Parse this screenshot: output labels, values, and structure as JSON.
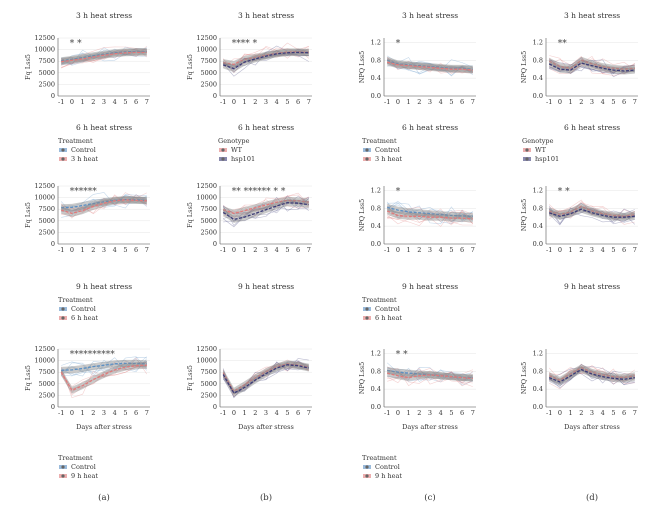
{
  "colors": {
    "control": "#5a8fc4",
    "treated": "#e07a7a",
    "wt": "#e07a7a",
    "hsp101": "#3c3c78",
    "band": "#8a8a8a",
    "grid": "#e6e6e6"
  },
  "x_ticks": [
    "-1",
    "0",
    "1",
    "2",
    "3",
    "4",
    "5",
    "6",
    "7"
  ],
  "x_axis_label": "Days after stress",
  "panel_letters": [
    "(a)",
    "(b)",
    "(c)",
    "(d)"
  ],
  "legends": [
    {
      "id": "treat-3h",
      "title": "Treatment",
      "items": [
        "Control",
        "3 h heat"
      ],
      "colors": [
        "#5a8fc4",
        "#e07a7a"
      ]
    },
    {
      "id": "geno-1",
      "title": "Genotype",
      "items": [
        "WT",
        "hsp101"
      ],
      "colors": [
        "#e07a7a",
        "#3c3c78"
      ]
    },
    {
      "id": "treat-3h-c",
      "title": "Treatment",
      "items": [
        "Control",
        "3 h heat"
      ],
      "colors": [
        "#5a8fc4",
        "#e07a7a"
      ]
    },
    {
      "id": "geno-2",
      "title": "Genotype",
      "items": [
        "WT",
        "hsp101"
      ],
      "colors": [
        "#e07a7a",
        "#3c3c78"
      ]
    },
    {
      "id": "treat-6h",
      "title": "Treatment",
      "items": [
        "Control",
        "6 h heat"
      ],
      "colors": [
        "#5a8fc4",
        "#e07a7a"
      ]
    },
    {
      "id": "treat-6h-c",
      "title": "Treatment",
      "items": [
        "Control",
        "6 h heat"
      ],
      "colors": [
        "#5a8fc4",
        "#e07a7a"
      ]
    },
    {
      "id": "treat-9h",
      "title": "Treatment",
      "items": [
        "Control",
        "9 h heat"
      ],
      "colors": [
        "#5a8fc4",
        "#e07a7a"
      ]
    },
    {
      "id": "treat-9h-c",
      "title": "Treatment",
      "items": [
        "Control",
        "9 h heat"
      ],
      "colors": [
        "#5a8fc4",
        "#e07a7a"
      ]
    }
  ],
  "chart_data": [
    {
      "type": "line",
      "id": "a1",
      "title": "3 h heat stress",
      "ylabel": "Fq Lss5",
      "yticks": [
        "0",
        "2500",
        "5000",
        "7500",
        "10000",
        "12500"
      ],
      "ylim": [
        0,
        12500
      ],
      "stars": "*   *",
      "x": [
        -1,
        0,
        1,
        2,
        3,
        4,
        5,
        6,
        7
      ],
      "series": [
        {
          "values": [
            7600,
            7900,
            8300,
            8700,
            9000,
            9300,
            9500,
            9600,
            9600
          ],
          "color": "control"
        },
        {
          "values": [
            7400,
            7700,
            8000,
            8400,
            8800,
            9100,
            9300,
            9400,
            9400
          ],
          "color": "treated"
        }
      ]
    },
    {
      "type": "line",
      "id": "b1",
      "title": "3 h heat stress",
      "ylabel": "Fq Lss5",
      "yticks": [
        "0",
        "2500",
        "5000",
        "7500",
        "10000",
        "12500"
      ],
      "ylim": [
        0,
        12500
      ],
      "stars": "**** *",
      "x": [
        -1,
        0,
        1,
        2,
        3,
        4,
        5,
        6,
        7
      ],
      "series": [
        {
          "values": [
            7200,
            6800,
            7900,
            8300,
            8800,
            9200,
            9500,
            9500,
            9400
          ],
          "color": "wt"
        },
        {
          "values": [
            6700,
            5900,
            7300,
            8000,
            8600,
            9100,
            9300,
            9400,
            9300
          ],
          "color": "hsp101"
        }
      ]
    },
    {
      "type": "line",
      "id": "c1",
      "title": "3 h heat stress",
      "ylabel": "NPQ Lss5",
      "yticks": [
        "0.0",
        "0.4",
        "0.8",
        "1.2"
      ],
      "ylim": [
        0,
        1.3
      ],
      "stars": "*",
      "x": [
        -1,
        0,
        1,
        2,
        3,
        4,
        5,
        6,
        7
      ],
      "series": [
        {
          "values": [
            0.8,
            0.72,
            0.7,
            0.68,
            0.66,
            0.64,
            0.62,
            0.62,
            0.6
          ],
          "color": "control"
        },
        {
          "values": [
            0.76,
            0.7,
            0.68,
            0.66,
            0.64,
            0.62,
            0.6,
            0.6,
            0.58
          ],
          "color": "treated"
        }
      ]
    },
    {
      "type": "line",
      "id": "d1",
      "title": "3 h heat stress",
      "ylabel": "NPQ Lss5",
      "yticks": [
        "0.0",
        "0.4",
        "0.8",
        "1.2"
      ],
      "ylim": [
        0,
        1.3
      ],
      "stars": "**",
      "x": [
        -1,
        0,
        1,
        2,
        3,
        4,
        5,
        6,
        7
      ],
      "series": [
        {
          "values": [
            0.78,
            0.66,
            0.62,
            0.8,
            0.72,
            0.66,
            0.62,
            0.6,
            0.62
          ],
          "color": "wt"
        },
        {
          "values": [
            0.72,
            0.6,
            0.58,
            0.74,
            0.68,
            0.62,
            0.58,
            0.56,
            0.58
          ],
          "color": "hsp101"
        }
      ]
    },
    {
      "type": "line",
      "id": "a2",
      "title": "6 h heat stress",
      "ylabel": "Fq Lss5",
      "yticks": [
        "0",
        "2500",
        "5000",
        "7500",
        "10000",
        "12500"
      ],
      "ylim": [
        0,
        12500
      ],
      "stars": "******",
      "x": [
        -1,
        0,
        1,
        2,
        3,
        4,
        5,
        6,
        7
      ],
      "series": [
        {
          "values": [
            7800,
            7900,
            8300,
            8700,
            9100,
            9400,
            9600,
            9500,
            9400
          ],
          "color": "control"
        },
        {
          "values": [
            7300,
            6600,
            7200,
            8100,
            8800,
            9300,
            9500,
            9400,
            9300
          ],
          "color": "treated"
        }
      ]
    },
    {
      "type": "line",
      "id": "b2",
      "title": "6 h heat stress",
      "ylabel": "Fq Lss5",
      "yticks": [
        "0",
        "2500",
        "5000",
        "7500",
        "10000",
        "12500"
      ],
      "ylim": [
        0,
        12500
      ],
      "stars": "** ****** *        *",
      "x": [
        -1,
        0,
        1,
        2,
        3,
        4,
        5,
        6,
        7
      ],
      "series": [
        {
          "values": [
            7400,
            6600,
            7200,
            7800,
            8400,
            9000,
            9400,
            9300,
            9000
          ],
          "color": "wt"
        },
        {
          "values": [
            6800,
            5300,
            5800,
            6600,
            7400,
            8200,
            8900,
            8800,
            8500
          ],
          "color": "hsp101"
        }
      ]
    },
    {
      "type": "line",
      "id": "c2",
      "title": "6 h heat stress",
      "ylabel": "NPQ Lss5",
      "yticks": [
        "0.0",
        "0.4",
        "0.8",
        "1.2"
      ],
      "ylim": [
        0,
        1.3
      ],
      "stars": "*",
      "x": [
        -1,
        0,
        1,
        2,
        3,
        4,
        5,
        6,
        7
      ],
      "series": [
        {
          "values": [
            0.82,
            0.76,
            0.72,
            0.7,
            0.68,
            0.66,
            0.64,
            0.63,
            0.62
          ],
          "color": "control"
        },
        {
          "values": [
            0.74,
            0.64,
            0.62,
            0.62,
            0.6,
            0.6,
            0.58,
            0.58,
            0.56
          ],
          "color": "treated"
        }
      ]
    },
    {
      "type": "line",
      "id": "d2",
      "title": "6 h heat stress",
      "ylabel": "NPQ Lss5",
      "yticks": [
        "0.0",
        "0.4",
        "0.8",
        "1.2"
      ],
      "ylim": [
        0,
        1.3
      ],
      "stars": "*   *",
      "x": [
        -1,
        0,
        1,
        2,
        3,
        4,
        5,
        6,
        7
      ],
      "series": [
        {
          "values": [
            0.74,
            0.66,
            0.72,
            0.84,
            0.74,
            0.68,
            0.64,
            0.62,
            0.66
          ],
          "color": "wt"
        },
        {
          "values": [
            0.7,
            0.62,
            0.68,
            0.78,
            0.7,
            0.64,
            0.6,
            0.6,
            0.62
          ],
          "color": "hsp101"
        }
      ]
    },
    {
      "type": "line",
      "id": "a3",
      "title": "9 h heat stress",
      "ylabel": "Fq Lss5",
      "yticks": [
        "0",
        "2500",
        "5000",
        "7500",
        "10000",
        "12500"
      ],
      "ylim": [
        0,
        12500
      ],
      "stars": "**********",
      "x": [
        -1,
        0,
        1,
        2,
        3,
        4,
        5,
        6,
        7
      ],
      "series": [
        {
          "values": [
            7900,
            8000,
            8300,
            8700,
            9000,
            9300,
            9400,
            9400,
            9300
          ],
          "color": "control"
        },
        {
          "values": [
            7500,
            3600,
            4600,
            5900,
            7000,
            8000,
            8600,
            8900,
            9000
          ],
          "color": "treated"
        }
      ]
    },
    {
      "type": "line",
      "id": "b3",
      "title": "9 h heat stress",
      "ylabel": "Fq Lss5",
      "yticks": [
        "0",
        "2500",
        "5000",
        "7500",
        "10000",
        "12500"
      ],
      "ylim": [
        0,
        12500
      ],
      "stars": "",
      "x": [
        -1,
        0,
        1,
        2,
        3,
        4,
        5,
        6,
        7
      ],
      "series": [
        {
          "values": [
            7400,
            3400,
            4800,
            6300,
            7600,
            8700,
            9300,
            9000,
            8600
          ],
          "color": "wt"
        },
        {
          "values": [
            7000,
            3000,
            4200,
            5800,
            7200,
            8400,
            9100,
            8900,
            8400
          ],
          "color": "hsp101"
        }
      ]
    },
    {
      "type": "line",
      "id": "c3",
      "title": "9 h heat stress",
      "ylabel": "NPQ Lss5",
      "yticks": [
        "0.0",
        "0.4",
        "0.8",
        "1.2"
      ],
      "ylim": [
        0,
        1.3
      ],
      "stars": "*      *",
      "x": [
        -1,
        0,
        1,
        2,
        3,
        4,
        5,
        6,
        7
      ],
      "series": [
        {
          "values": [
            0.82,
            0.78,
            0.76,
            0.74,
            0.72,
            0.7,
            0.68,
            0.66,
            0.66
          ],
          "color": "control"
        },
        {
          "values": [
            0.76,
            0.7,
            0.66,
            0.7,
            0.72,
            0.7,
            0.68,
            0.66,
            0.64
          ],
          "color": "treated"
        }
      ]
    },
    {
      "type": "line",
      "id": "d3",
      "title": "9 h heat stress",
      "ylabel": "NPQ Lss5",
      "yticks": [
        "0.0",
        "0.4",
        "0.8",
        "1.2"
      ],
      "ylim": [
        0,
        1.3
      ],
      "stars": "",
      "x": [
        -1,
        0,
        1,
        2,
        3,
        4,
        5,
        6,
        7
      ],
      "series": [
        {
          "values": [
            0.7,
            0.6,
            0.74,
            0.88,
            0.78,
            0.72,
            0.68,
            0.66,
            0.7
          ],
          "color": "wt"
        },
        {
          "values": [
            0.66,
            0.56,
            0.7,
            0.84,
            0.74,
            0.68,
            0.64,
            0.62,
            0.66
          ],
          "color": "hsp101"
        }
      ]
    }
  ]
}
